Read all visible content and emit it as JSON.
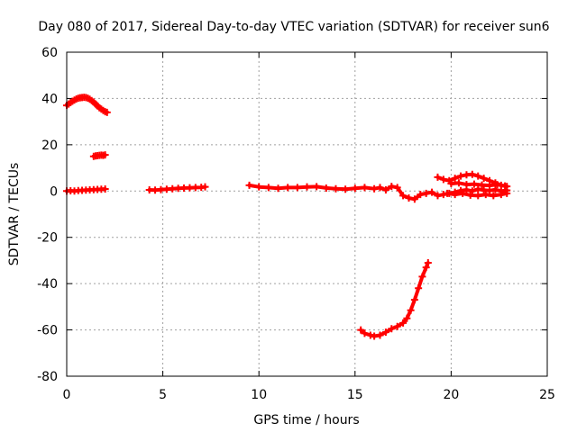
{
  "chart_data": {
    "type": "scatter",
    "title": "Day 080 of 2017, Sidereal Day-to-day VTEC variation (SDTVAR) for receiver sun6",
    "xlabel": "GPS time / hours",
    "ylabel": "SDTVAR / TECUs",
    "xlim": [
      0,
      25
    ],
    "ylim": [
      -80,
      60
    ],
    "xticks": [
      0,
      5,
      10,
      15,
      20,
      25
    ],
    "yticks": [
      -80,
      -60,
      -40,
      -20,
      0,
      20,
      40,
      60
    ],
    "grid": true,
    "legend": "none",
    "marker": "plus",
    "series_color": "#ff0000",
    "series": [
      {
        "name": "seg-arc",
        "x": [
          0.0,
          0.1,
          0.2,
          0.3,
          0.4,
          0.5,
          0.6,
          0.7,
          0.8,
          0.9,
          1.0,
          1.1,
          1.2,
          1.3,
          1.4,
          1.5,
          1.6,
          1.7,
          1.8,
          1.9,
          2.0,
          2.1
        ],
        "y": [
          37,
          37.6,
          38.2,
          38.8,
          39.3,
          39.8,
          40.1,
          40.3,
          40.4,
          40.5,
          40.4,
          40.1,
          39.7,
          39.1,
          38.4,
          37.6,
          36.8,
          36.0,
          35.4,
          34.8,
          34.3,
          34.0
        ]
      },
      {
        "name": "seg-15",
        "x": [
          1.4,
          1.5,
          1.6,
          1.7,
          1.8,
          1.9,
          2.0
        ],
        "y": [
          15.0,
          15.2,
          15.3,
          15.4,
          15.5,
          15.4,
          15.6
        ]
      },
      {
        "name": "seg-zero-a",
        "x": [
          0.0,
          0.2,
          0.4,
          0.6,
          0.8,
          1.0,
          1.2,
          1.4,
          1.6,
          1.8,
          2.0
        ],
        "y": [
          0.0,
          0.1,
          0.0,
          0.2,
          0.3,
          0.4,
          0.5,
          0.6,
          0.7,
          0.8,
          0.9
        ]
      },
      {
        "name": "seg-zero-b",
        "x": [
          4.3,
          4.6,
          4.9,
          5.2,
          5.5,
          5.8,
          6.1,
          6.4,
          6.7,
          7.0,
          7.2
        ],
        "y": [
          0.5,
          0.4,
          0.6,
          0.8,
          1.0,
          1.2,
          1.3,
          1.4,
          1.5,
          1.6,
          1.8
        ]
      },
      {
        "name": "seg-zero-c",
        "x": [
          9.5,
          10.0,
          10.5,
          11.0,
          11.5,
          12.0,
          12.5,
          13.0,
          13.5,
          14.0,
          14.5,
          15.0,
          15.5,
          16.0,
          16.3,
          16.6,
          16.9,
          17.2,
          17.5,
          17.8,
          18.1,
          18.4,
          18.7,
          19.0,
          19.3,
          19.6,
          19.9,
          20.2,
          20.5,
          20.8,
          21.1,
          21.4,
          21.7,
          22.0,
          22.3,
          22.6,
          22.9
        ],
        "y": [
          2.5,
          1.8,
          1.5,
          1.2,
          1.5,
          1.5,
          1.8,
          1.9,
          1.3,
          1.0,
          0.8,
          1.2,
          1.5,
          1.0,
          1.5,
          0.5,
          2.0,
          1.5,
          -2.0,
          -3.0,
          -3.5,
          -1.5,
          -1.0,
          -0.5,
          -2.0,
          -1.5,
          -1.0,
          -0.5,
          0.2,
          0.5,
          0.0,
          0.8,
          0.4,
          0.2,
          0.6,
          0.0,
          0.3
        ]
      },
      {
        "name": "seg-loop-upper",
        "x": [
          19.3,
          19.6,
          19.9,
          20.2,
          20.5,
          20.8,
          21.1,
          21.4,
          21.7,
          22.0,
          22.3,
          22.6,
          22.9
        ],
        "y": [
          6.0,
          5.0,
          4.5,
          5.5,
          6.5,
          7.0,
          7.2,
          6.5,
          5.5,
          4.5,
          3.5,
          2.5,
          2.0
        ]
      },
      {
        "name": "seg-loop-mid",
        "x": [
          20.0,
          20.4,
          20.8,
          21.2,
          21.6,
          22.0,
          22.4,
          22.8
        ],
        "y": [
          3.2,
          3.5,
          2.8,
          3.0,
          2.6,
          2.4,
          2.8,
          2.2
        ]
      },
      {
        "name": "seg-loop-lower",
        "x": [
          19.8,
          20.2,
          20.6,
          21.0,
          21.4,
          21.8,
          22.2,
          22.6,
          22.9
        ],
        "y": [
          -1.0,
          -1.5,
          -1.0,
          -1.8,
          -2.0,
          -1.5,
          -2.0,
          -1.5,
          -1.0
        ]
      },
      {
        "name": "seg-neg",
        "x": [
          15.3,
          15.5,
          15.8,
          16.0,
          16.3,
          16.6,
          16.9,
          17.2,
          17.5,
          17.7,
          17.9,
          18.1,
          18.3,
          18.5,
          18.7,
          18.8
        ],
        "y": [
          -60,
          -61.5,
          -62.3,
          -62.7,
          -62.3,
          -61.0,
          -59.5,
          -58.5,
          -57.0,
          -55.0,
          -51.5,
          -47.0,
          -42.0,
          -37.0,
          -33.0,
          -31.0
        ]
      }
    ]
  }
}
